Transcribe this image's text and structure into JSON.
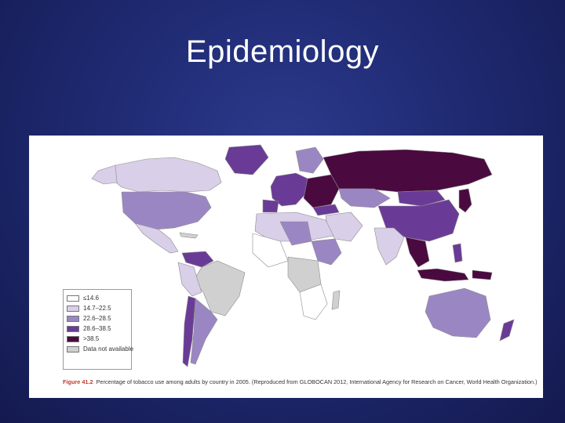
{
  "slide": {
    "title": "Epidemiology"
  },
  "map": {
    "legend": [
      {
        "label": "≤14.6",
        "color": "#ffffff"
      },
      {
        "label": "14.7–22.5",
        "color": "#d9cfe8"
      },
      {
        "label": "22.6–28.5",
        "color": "#9b86c4"
      },
      {
        "label": "28.6–38.5",
        "color": "#6a3b96"
      },
      {
        "label": ">38.5",
        "color": "#4a0a40"
      },
      {
        "label": "Data not available",
        "color": "#d0d0d0"
      }
    ],
    "caption_label": "Figure 41.2",
    "caption_text": "Percentage of tobacco use among adults by country in 2005. (Reproduced from GLOBOCAN 2012, International Agency for Research on Cancer, World Health Organization.)"
  }
}
